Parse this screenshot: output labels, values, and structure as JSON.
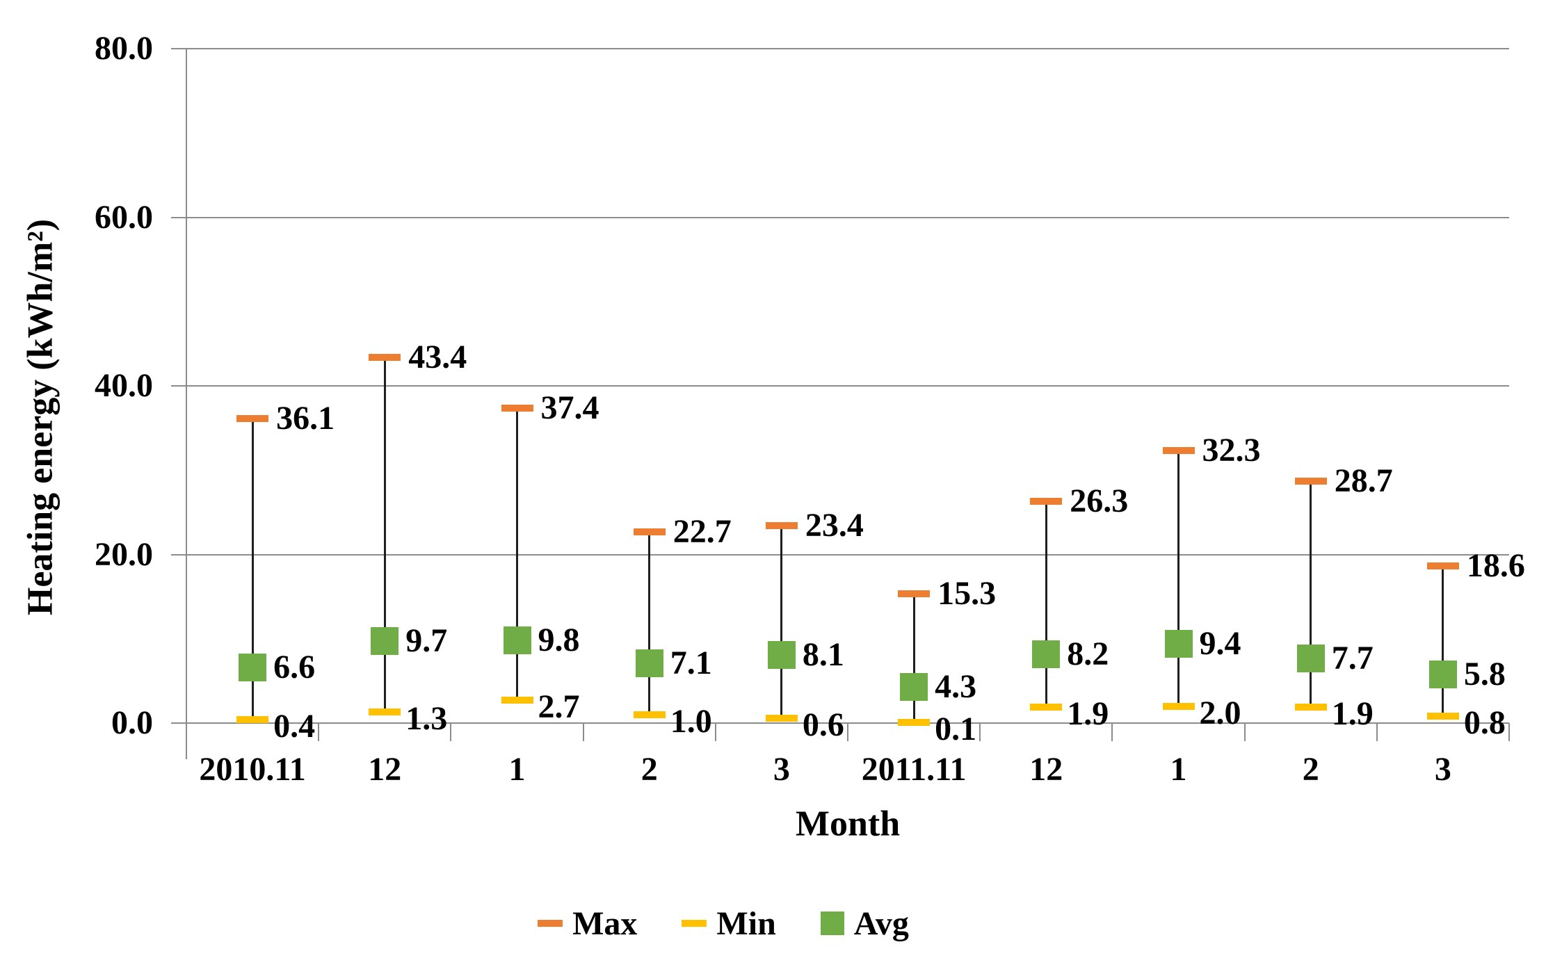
{
  "chart_data": {
    "type": "scatter",
    "subtype": "high-low-error-bars",
    "title": "",
    "xlabel": "Month",
    "ylabel": "Heating energy (kWh/m²)",
    "categories": [
      "2010.11",
      "12",
      "1",
      "2",
      "3",
      "2011.11",
      "12",
      "1",
      "2",
      "3"
    ],
    "series": [
      {
        "name": "Max",
        "marker": "dash",
        "color": "#ED7D31",
        "values": [
          36.1,
          43.4,
          37.4,
          22.7,
          23.4,
          15.3,
          26.3,
          32.3,
          28.7,
          18.6
        ]
      },
      {
        "name": "Min",
        "marker": "dash",
        "color": "#FFC000",
        "values": [
          0.4,
          1.3,
          2.7,
          1.0,
          0.6,
          0.1,
          1.9,
          2.0,
          1.9,
          0.8
        ]
      },
      {
        "name": "Avg",
        "marker": "square",
        "color": "#70AD47",
        "values": [
          6.6,
          9.7,
          9.8,
          7.1,
          8.1,
          4.3,
          8.2,
          9.4,
          7.7,
          5.8
        ]
      }
    ],
    "ylim": [
      0,
      80
    ],
    "ytick_step": 20,
    "ytick_labels": [
      "0.0",
      "20.0",
      "40.0",
      "60.0",
      "80.0"
    ],
    "grid": true,
    "data_labels": true,
    "legend_position": "bottom",
    "colors": {
      "grid": "#8C8C8C",
      "axis": "#8C8C8C",
      "error_bar": "#1F1F1F",
      "text": "#000000",
      "background": "#FFFFFF"
    }
  }
}
